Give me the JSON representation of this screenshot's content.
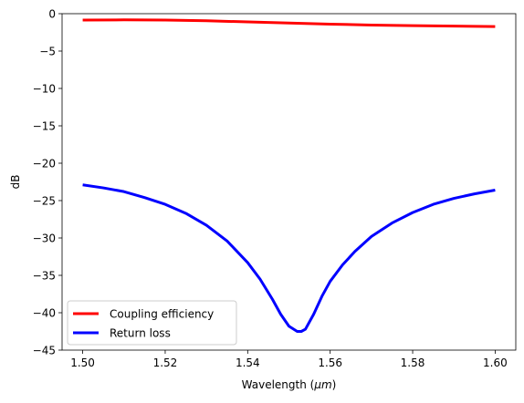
{
  "chart_data": {
    "type": "line",
    "title": "",
    "xlabel": "Wavelength (μm)",
    "xlabel_parts": {
      "prefix": "Wavelength (",
      "unit": "μm",
      "suffix": ")"
    },
    "ylabel": "dB",
    "xlim": [
      1.495,
      1.605
    ],
    "ylim": [
      -45,
      0
    ],
    "xticks": [
      1.5,
      1.52,
      1.54,
      1.56,
      1.58,
      1.6
    ],
    "xtick_labels": [
      "1.50",
      "1.52",
      "1.54",
      "1.56",
      "1.58",
      "1.60"
    ],
    "yticks": [
      0,
      -5,
      -10,
      -15,
      -20,
      -25,
      -30,
      -35,
      -40,
      -45
    ],
    "ytick_labels": [
      "0",
      "−5",
      "−10",
      "−15",
      "−20",
      "−25",
      "−30",
      "−35",
      "−40",
      "−45"
    ],
    "grid": false,
    "legend_position": "lower-left",
    "series": [
      {
        "name": "Coupling efficiency",
        "color": "#ff0000",
        "x": [
          1.5,
          1.51,
          1.52,
          1.53,
          1.54,
          1.55,
          1.56,
          1.57,
          1.58,
          1.59,
          1.6
        ],
        "y": [
          -0.85,
          -0.83,
          -0.85,
          -0.95,
          -1.1,
          -1.25,
          -1.4,
          -1.52,
          -1.6,
          -1.66,
          -1.72
        ]
      },
      {
        "name": "Return loss",
        "color": "#0000ff",
        "x": [
          1.5,
          1.505,
          1.51,
          1.515,
          1.52,
          1.525,
          1.53,
          1.535,
          1.54,
          1.543,
          1.546,
          1.548,
          1.55,
          1.552,
          1.553,
          1.554,
          1.556,
          1.558,
          1.56,
          1.563,
          1.566,
          1.57,
          1.575,
          1.58,
          1.585,
          1.59,
          1.595,
          1.6
        ],
        "y": [
          -22.9,
          -23.3,
          -23.8,
          -24.6,
          -25.5,
          -26.7,
          -28.3,
          -30.4,
          -33.3,
          -35.5,
          -38.2,
          -40.2,
          -41.8,
          -42.5,
          -42.5,
          -42.2,
          -40.2,
          -37.8,
          -35.8,
          -33.6,
          -31.8,
          -29.8,
          -28.0,
          -26.6,
          -25.5,
          -24.7,
          -24.1,
          -23.6
        ]
      }
    ]
  }
}
